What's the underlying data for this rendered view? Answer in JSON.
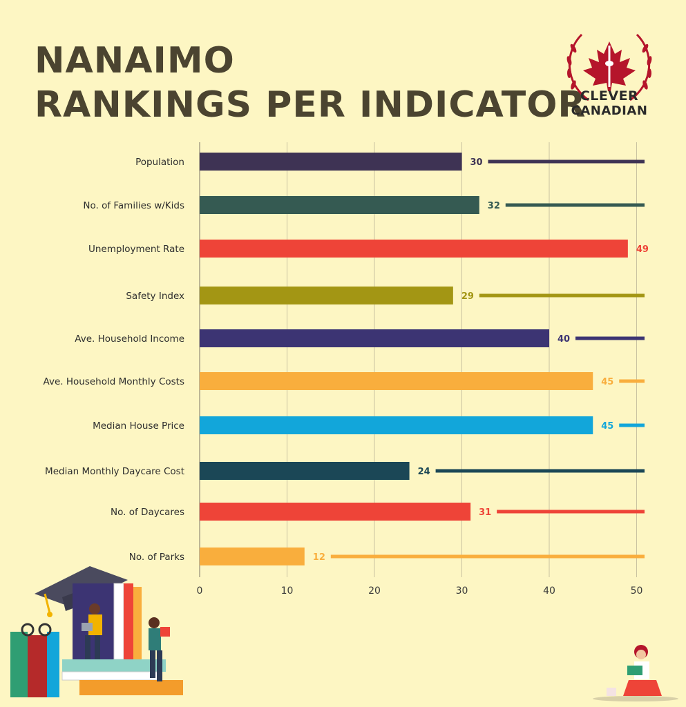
{
  "title_lines": [
    "NANAIMO",
    "RANKINGS PER INDICATOR"
  ],
  "logo": {
    "line1": "CLEVER",
    "line2": "CANADIAN",
    "icon": "maple-leaf-tower-icon",
    "color": "#b5152b"
  },
  "chart_data": {
    "type": "bar",
    "orientation": "horizontal",
    "categories": [
      "Population",
      "No. of Families w/Kids",
      "Unemployment Rate",
      "Safety Index",
      "Ave. Household Income",
      "Ave. Household Monthly Costs",
      "Median House Price",
      "Median Monthly Daycare Cost",
      "No. of Daycares",
      "No. of Parks"
    ],
    "values": [
      30,
      32,
      49,
      29,
      40,
      45,
      45,
      24,
      31,
      12
    ],
    "colors": [
      "#3e3354",
      "#355a52",
      "#ee4438",
      "#a39614",
      "#3c3473",
      "#f9ae3d",
      "#12a6da",
      "#1b4756",
      "#ee4438",
      "#f9ae3d"
    ],
    "xlim": [
      0,
      51
    ],
    "xticks": [
      0,
      10,
      20,
      30,
      40,
      50
    ],
    "grid": true
  }
}
